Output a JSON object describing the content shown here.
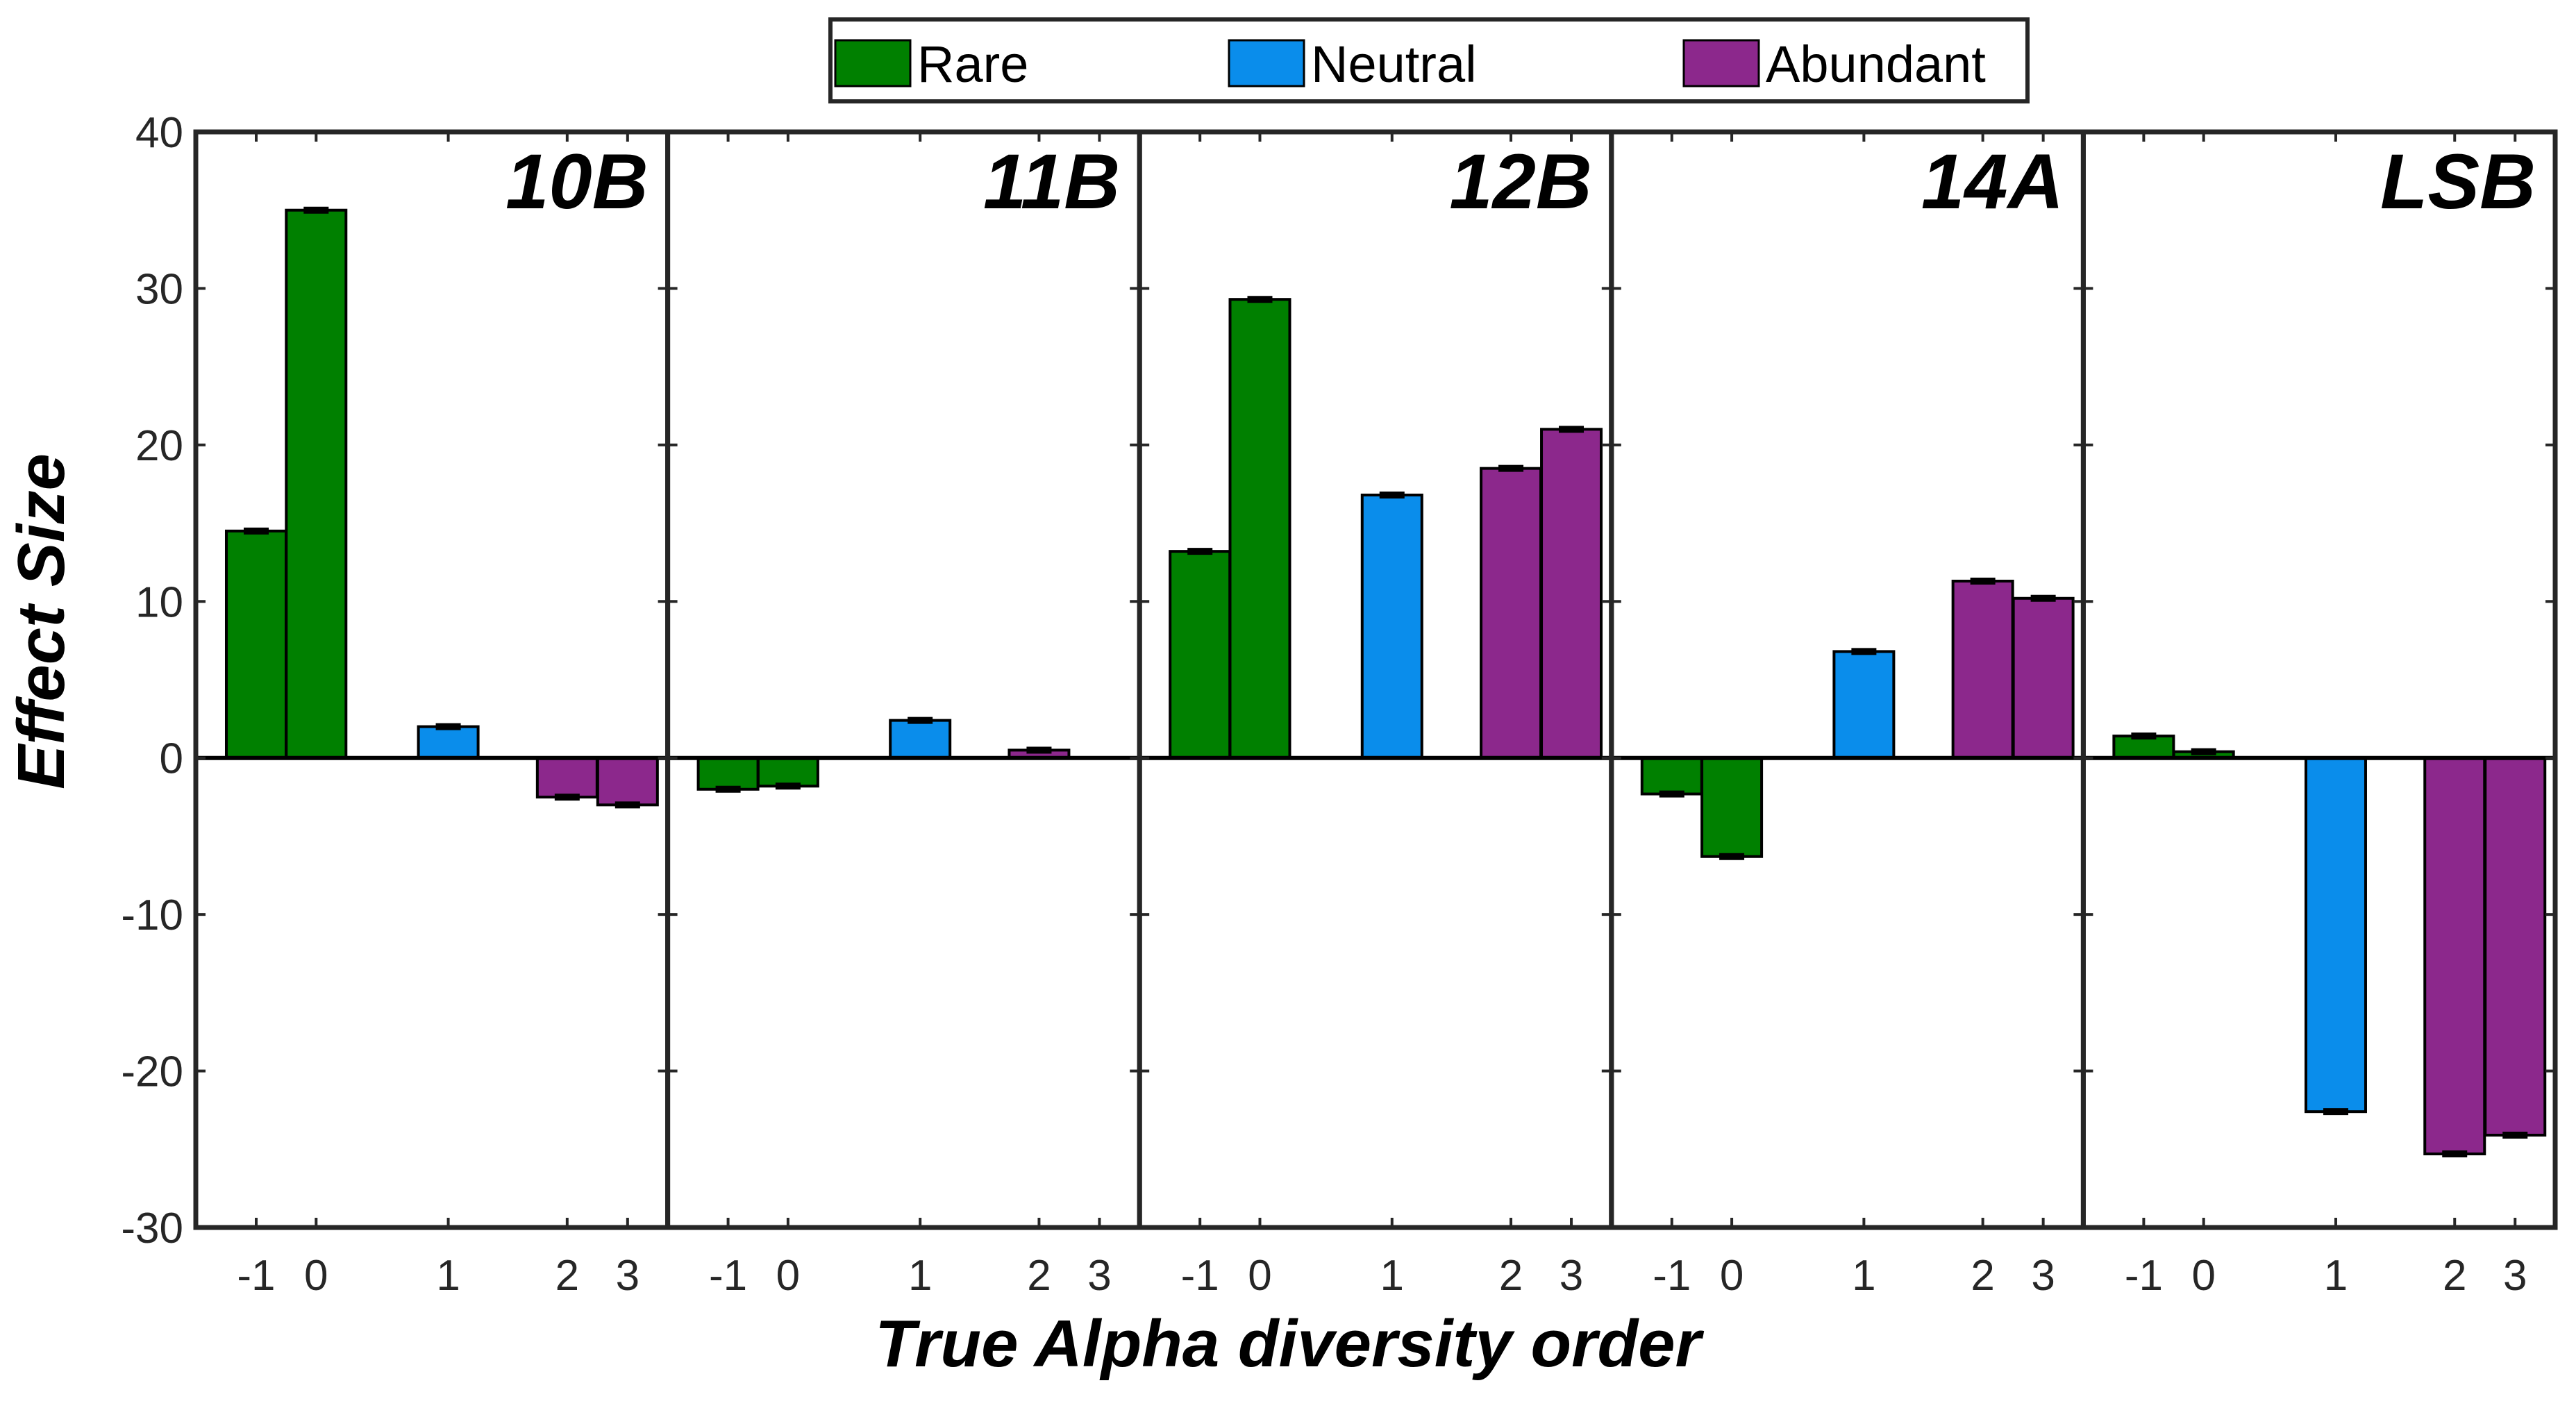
{
  "chart_data": {
    "type": "bar",
    "xlabel": "True Alpha diversity order",
    "ylabel": "Effect Size",
    "ylim": [
      -30,
      40
    ],
    "yticks": [
      -30,
      -20,
      -10,
      0,
      10,
      20,
      30,
      40
    ],
    "categories": [
      "-1",
      "0",
      "1",
      "2",
      "3"
    ],
    "groups": [
      {
        "name": "Rare",
        "categories": [
          "-1",
          "0"
        ],
        "color": "#008000"
      },
      {
        "name": "Neutral",
        "categories": [
          "1"
        ],
        "color": "#0A8DEB"
      },
      {
        "name": "Abundant",
        "categories": [
          "2",
          "3"
        ],
        "color": "#8C288C"
      }
    ],
    "legend": {
      "placement": "top-center",
      "entries": [
        {
          "label": "Rare",
          "color": "#008000"
        },
        {
          "label": "Neutral",
          "color": "#0A8DEB"
        },
        {
          "label": "Abundant",
          "color": "#8C288C"
        }
      ]
    },
    "panels": [
      {
        "title": "10B",
        "values": [
          14.5,
          35.0,
          2.0,
          -2.5,
          -3.0
        ]
      },
      {
        "title": "11B",
        "values": [
          -2.0,
          -1.8,
          2.4,
          0.5,
          0.0
        ]
      },
      {
        "title": "12B",
        "values": [
          13.2,
          29.3,
          16.8,
          18.5,
          21.0
        ]
      },
      {
        "title": "14A",
        "values": [
          -2.3,
          -6.3,
          6.8,
          11.3,
          10.2
        ]
      },
      {
        "title": "LSB",
        "values": [
          1.4,
          0.4,
          -22.6,
          -25.3,
          -24.1
        ]
      }
    ],
    "error_bars": true,
    "grid": false
  }
}
